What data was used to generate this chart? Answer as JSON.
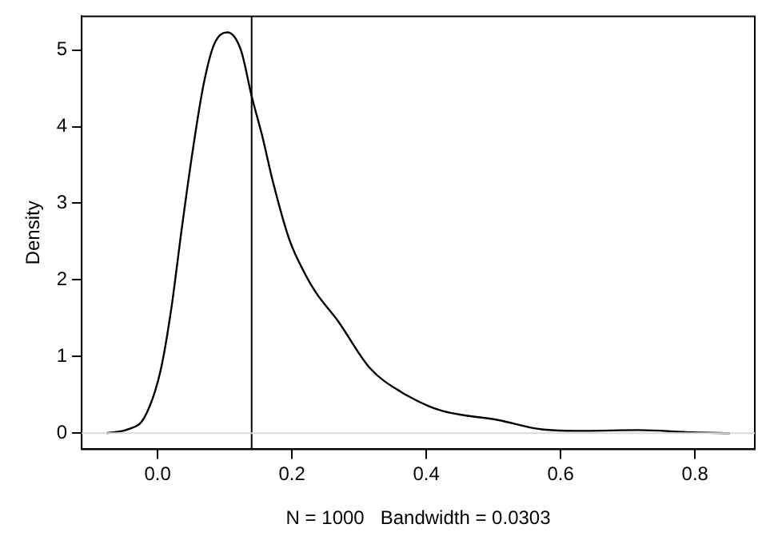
{
  "chart_data": {
    "type": "line",
    "xlabel": "N = 1000   Bandwidth = 0.0303",
    "ylabel": "Density",
    "x": [
      -0.076,
      -0.044,
      -0.02,
      0.004,
      0.02,
      0.036,
      0.052,
      0.068,
      0.084,
      0.104,
      0.124,
      0.14,
      0.156,
      0.172,
      0.196,
      0.22,
      0.236,
      0.268,
      0.316,
      0.364,
      0.42,
      0.508,
      0.572,
      0.636,
      0.716,
      0.796,
      0.852
    ],
    "series": [
      {
        "color": "#000000",
        "values": [
          0,
          0.05,
          0.2,
          0.8,
          1.6,
          2.67,
          3.67,
          4.53,
          5.07,
          5.23,
          5.0,
          4.4,
          3.87,
          3.27,
          2.53,
          2.07,
          1.83,
          1.47,
          0.85,
          0.53,
          0.3,
          0.17,
          0.05,
          0.03,
          0.04,
          0.01,
          0
        ]
      }
    ],
    "xlim": [
      -0.113,
      0.889
    ],
    "xticks": [
      {
        "value": 0,
        "label": "0.0"
      },
      0.2,
      0.4,
      0.6,
      0.8
    ],
    "ylim": [
      -0.21,
      5.44
    ],
    "yticks": [
      0,
      1,
      2,
      3,
      4,
      5
    ],
    "ref_lines": [
      {
        "axis": "x",
        "value": 0.14,
        "color": "#000000"
      },
      {
        "axis": "y",
        "value": 0,
        "color": "#d9d9d9"
      }
    ],
    "grid": false,
    "legend": false,
    "marker": "none",
    "line_style": "solid"
  }
}
